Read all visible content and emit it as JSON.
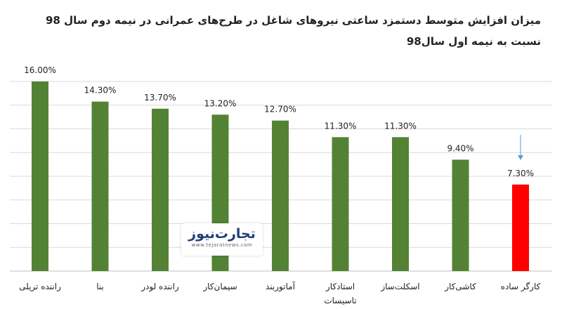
{
  "chart_data": {
    "type": "bar",
    "title_line1": "میزان افزایش متوسط دستمزد ساعتی نیروهای شاغل در طرح‌های عمرانی در نیمه دوم سال 98",
    "title_line2": "نسبت به نیمه اول سال98",
    "categories": [
      [
        "راننده تریلی"
      ],
      [
        "بنا"
      ],
      [
        "راننده لودر"
      ],
      [
        "سیمان‌کار"
      ],
      [
        "آماتوربند"
      ],
      [
        "استادکار",
        "تاسیسات"
      ],
      [
        "اسکلت‌ساز"
      ],
      [
        "کاشی‌کار"
      ],
      [
        "کارگر ساده"
      ]
    ],
    "values": [
      16.0,
      14.3,
      13.7,
      13.2,
      12.7,
      11.3,
      11.3,
      9.4,
      7.3
    ],
    "labels": [
      "16.00%",
      "14.30%",
      "13.70%",
      "13.20%",
      "12.70%",
      "11.30%",
      "11.30%",
      "9.40%",
      "7.30%"
    ],
    "colors": [
      "#548235",
      "#548235",
      "#548235",
      "#548235",
      "#548235",
      "#548235",
      "#548235",
      "#548235",
      "#ff0000"
    ],
    "highlight_arrow_color": "#5b9bd5",
    "ylim": [
      0,
      16
    ],
    "grid": true,
    "legend": "none"
  },
  "logo": {
    "name": "تجارت‌نیوز",
    "url": "www.tejaratnews.com"
  }
}
